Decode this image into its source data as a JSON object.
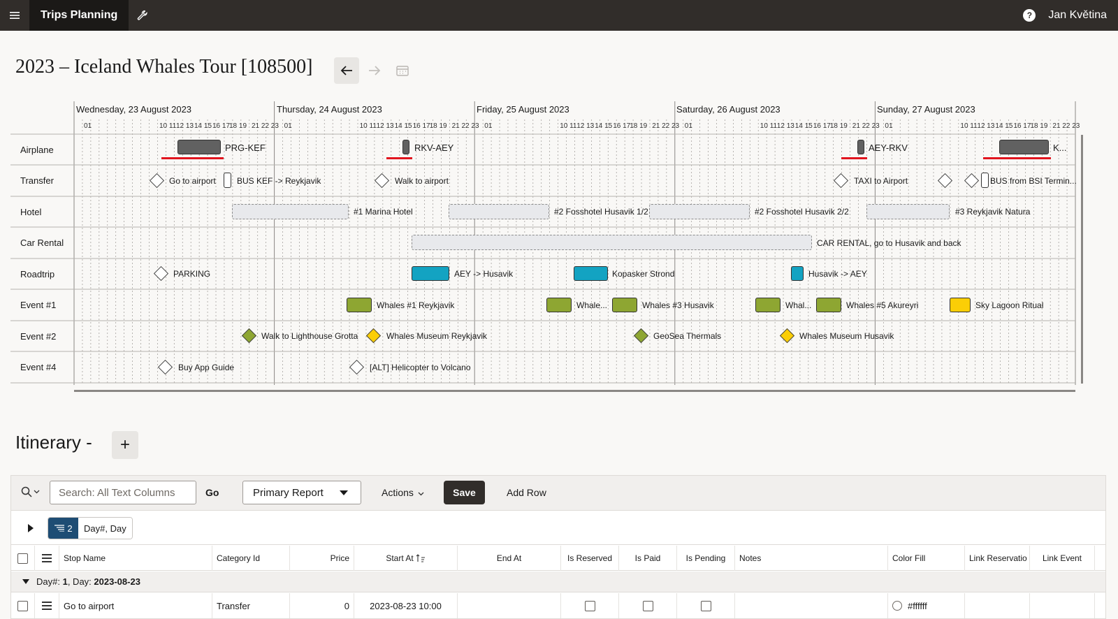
{
  "header": {
    "app_name": "Trips Planning",
    "user_name": "Jan Květina",
    "help_glyph": "?"
  },
  "page": {
    "title": "2023 – Iceland Whales Tour [108500]"
  },
  "gantt": {
    "days": [
      "Wednesday, 23 August 2023",
      "Thursday, 24 August 2023",
      "Friday, 25 August 2023",
      "Saturday, 26 August 2023",
      "Sunday, 27 August 2023"
    ],
    "hour_labels": [
      "01",
      "10 11",
      "12 13",
      "14 15",
      "16 17",
      "18 19",
      "21 22 23"
    ],
    "rows": [
      "Airplane",
      "Transfer",
      "Hotel",
      "Car Rental",
      "Roadtrip",
      "Event #1",
      "Event #2",
      "Event #4"
    ],
    "items": {
      "airplane_1": "PRG-KEF",
      "airplane_2": "RKV-AEY",
      "airplane_3": "AEY-RKV",
      "airplane_4": "K...",
      "transfer_1": "Go to airport",
      "transfer_2": "BUS KEF -> Reykjavik",
      "transfer_3": "Walk to airport",
      "transfer_4": "TAXI to Airport",
      "transfer_5": "BUS from BSI Termin...",
      "hotel_1": "#1 Marina Hotel",
      "hotel_2": "#2 Fosshotel Husavik 1/2",
      "hotel_3": "#2 Fosshotel Husavik 2/2",
      "hotel_4": "#3 Reykjavik Natura",
      "car_1": "CAR RENTAL, go to Husavik and back",
      "road_1": "PARKING",
      "road_2": "AEY -> Husavik",
      "road_3": "Kopasker Strond",
      "road_4": "Husavik -> AEY",
      "ev1_1": "Whales #1 Reykjavik",
      "ev1_2": "Whale...",
      "ev1_3": "Whales #3 Husavik",
      "ev1_4": "Whal...",
      "ev1_5": "Whales #5 Akureyri",
      "ev1_6": "Sky Lagoon Ritual",
      "ev2_1": "Walk to Lighthouse Grotta",
      "ev2_2": "Whales Museum Reykjavik",
      "ev2_3": "GeoSea Thermals",
      "ev2_4": "Whales Museum Husavik",
      "ev4_1": "Buy App Guide",
      "ev4_2": "[ALT] Helicopter to Volcano"
    }
  },
  "itinerary": {
    "title": "Itinerary -",
    "add_label": "+",
    "search_placeholder": "Search: All Text Columns",
    "go_label": "Go",
    "report_name": "Primary Report",
    "actions_label": "Actions",
    "save_label": "Save",
    "add_row_label": "Add Row",
    "control_break_count": "2",
    "control_break_label": "Day#, Day",
    "columns": [
      "Stop Name",
      "Category Id",
      "Price",
      "Start At",
      "End At",
      "Is Reserved",
      "Is Paid",
      "Is Pending",
      "Notes",
      "Color Fill",
      "Link Reservatio",
      "Link Event"
    ],
    "group": {
      "prefix1": "Day#:",
      "day_num": "1",
      "prefix2": ", Day:",
      "date": "2023-08-23"
    },
    "row": {
      "stop_name": "Go to airport",
      "category": "Transfer",
      "price": "0",
      "start_at": "2023-08-23 10:00",
      "color_fill": "#ffffff"
    }
  },
  "colors": {
    "header_bg": "#312d2a",
    "airplane_bar": "#616161",
    "roadtrip_bar": "#13a3c2",
    "event_green": "#8ea632",
    "event_yellow": "#fbce06",
    "airplane_underline": "#e1141e",
    "control_break_chip": "#1e4d74"
  }
}
